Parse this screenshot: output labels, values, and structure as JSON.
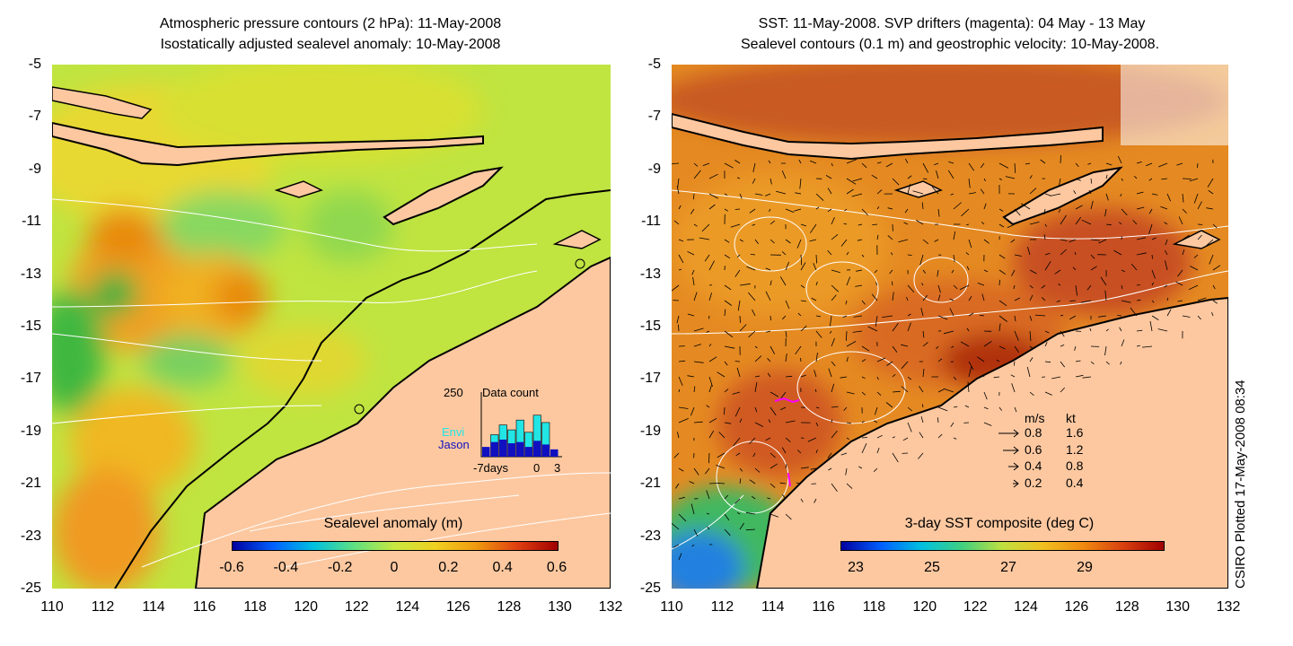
{
  "left_panel": {
    "title_line1": "Atmospheric pressure contours (2 hPa): 11-May-2008",
    "title_line2": "Isostatically adjusted sealevel anomaly: 10-May-2008",
    "colorbar": {
      "label": "Sealevel anomaly (m)",
      "ticks": [
        "-0.6",
        "-0.4",
        "-0.2",
        "0",
        "0.2",
        "0.4",
        "0.6"
      ]
    },
    "data_count_inset": {
      "title": "Data count",
      "max_label": "250",
      "series_labels": [
        "Envi",
        "Jason"
      ],
      "x_labels": [
        "-7days",
        "0",
        "3"
      ],
      "envi_color": "#22e5e5",
      "jason_color": "#1010c0",
      "bars": [
        {
          "day": -7,
          "envi": 0,
          "jason": 40
        },
        {
          "day": -6,
          "envi": 90,
          "jason": 60
        },
        {
          "day": -5,
          "envi": 130,
          "jason": 70
        },
        {
          "day": -4,
          "envi": 110,
          "jason": 55
        },
        {
          "day": -3,
          "envi": 150,
          "jason": 60
        },
        {
          "day": -2,
          "envi": 100,
          "jason": 40
        },
        {
          "day": -1,
          "envi": 170,
          "jason": 65
        },
        {
          "day": 0,
          "envi": 140,
          "jason": 50
        },
        {
          "day": 1,
          "envi": 0,
          "jason": 30
        }
      ]
    }
  },
  "right_panel": {
    "title_line1": "SST: 11-May-2008. SVP drifters (magenta): 04 May - 13 May",
    "title_line2": "Sealevel contours (0.1 m) and geostrophic velocity: 10-May-2008.",
    "colorbar": {
      "label": "3-day SST composite (deg C)",
      "ticks": [
        "23",
        "25",
        "27",
        "29"
      ]
    },
    "velocity_legend": {
      "header_ms": "m/s",
      "header_kt": "kt",
      "rows": [
        {
          "ms": "0.8",
          "kt": "1.6"
        },
        {
          "ms": "0.6",
          "kt": "1.2"
        },
        {
          "ms": "0.4",
          "kt": "0.8"
        },
        {
          "ms": "0.2",
          "kt": "0.4"
        }
      ]
    }
  },
  "axes": {
    "y_ticks": [
      "-5",
      "-7",
      "-9",
      "-11",
      "-13",
      "-15",
      "-17",
      "-19",
      "-21",
      "-23",
      "-25"
    ],
    "x_ticks": [
      "110",
      "112",
      "114",
      "116",
      "118",
      "120",
      "122",
      "124",
      "126",
      "128",
      "130",
      "132"
    ]
  },
  "credit": "CSIRO Plotted 17-May-2008 08:34",
  "colors": {
    "land": "#fdc8a0",
    "sla_background": "#c8e840",
    "sst_background": "#e07a20"
  }
}
